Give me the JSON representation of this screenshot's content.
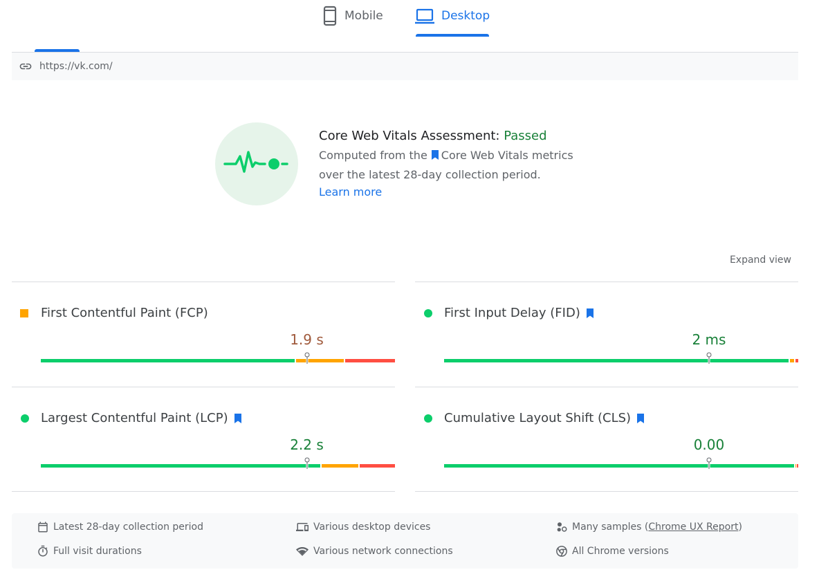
{
  "tabs": {
    "mobile_label": "Mobile",
    "desktop_label": "Desktop",
    "active": "Desktop"
  },
  "url_bar": {
    "url": "https://vk.com/"
  },
  "assessment": {
    "title": "Core Web Vitals Assessment: ",
    "status": "Passed",
    "desc_part1": "Computed from the",
    "desc_part2": "Core Web Vitals metrics",
    "desc_line2": "over the latest 28-day collection period.",
    "learn_more": "Learn more"
  },
  "expand_view": "Expand view",
  "metrics": {
    "fcp": {
      "name": "First Contentful Paint (FCP)",
      "value": "1.9 s",
      "rating": "average",
      "core_vital": false,
      "distribution": {
        "good": 0.72,
        "average": 0.14,
        "poor": 0.14
      },
      "marker": 0.751
    },
    "fid": {
      "name": "First Input Delay (FID)",
      "value": "2 ms",
      "rating": "good",
      "core_vital": true,
      "distribution": {
        "good": 0.976,
        "average": 0.017,
        "poor": 0.007
      },
      "marker": 0.748
    },
    "lcp": {
      "name": "Largest Contentful Paint (LCP)",
      "value": "2.2 s",
      "rating": "good",
      "core_vital": true,
      "distribution": {
        "good": 0.792,
        "average": 0.109,
        "poor": 0.099
      },
      "marker": 0.751
    },
    "cls": {
      "name": "Cumulative Layout Shift (CLS)",
      "value": "0.00",
      "rating": "good",
      "core_vital": true,
      "distribution": {
        "good": 0.992,
        "average": 0.004,
        "poor": 0.004
      },
      "marker": 0.748
    }
  },
  "info": {
    "collection_period": "Latest 28-day collection period",
    "devices": "Various desktop devices",
    "samples_prefix": "Many samples (",
    "samples_link": "Chrome UX Report",
    "samples_suffix": ")",
    "durations": "Full visit durations",
    "network": "Various network connections",
    "chrome_versions": "All Chrome versions"
  },
  "colors": {
    "accent": "#1a73e8",
    "good": "#0cce6b",
    "average": "#ffa400",
    "poor": "#ff4e42",
    "passed_text": "#188038"
  }
}
